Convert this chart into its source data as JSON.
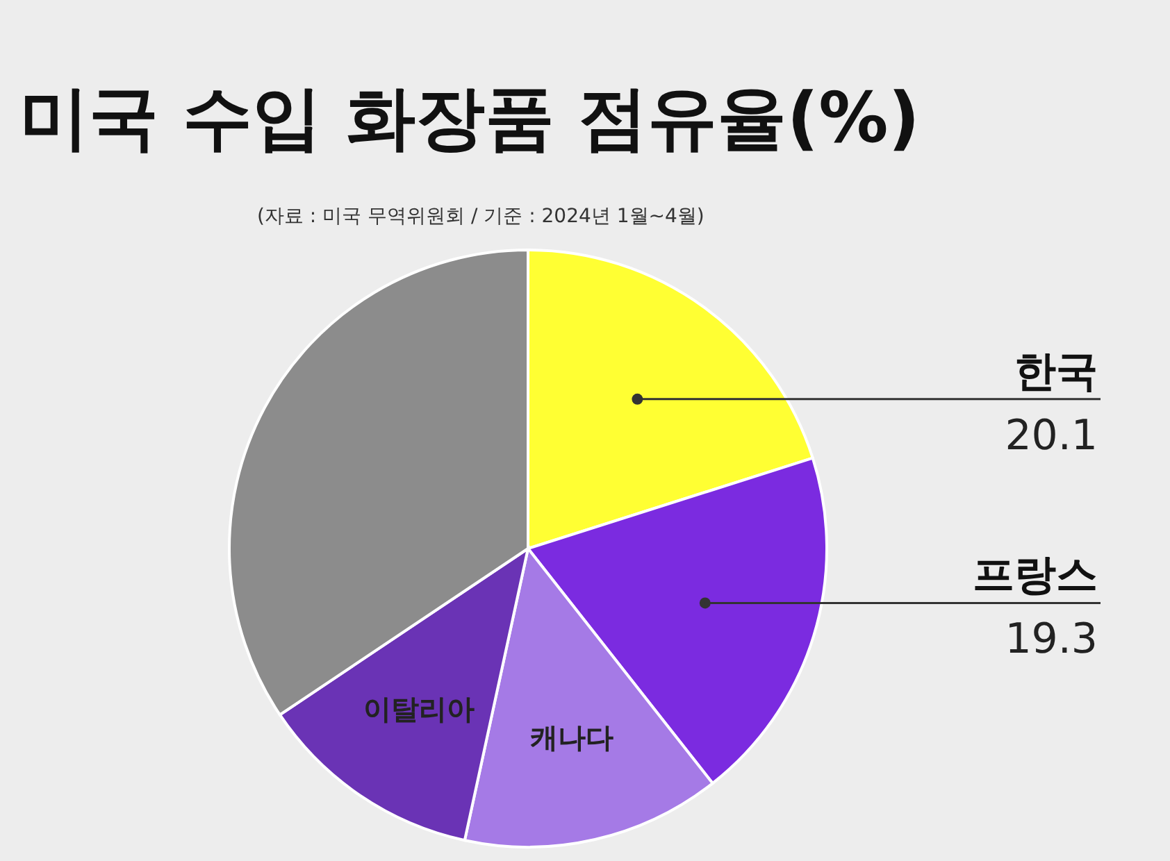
{
  "chart_data": {
    "type": "pie",
    "title": "미국 수입 화장품 점유율(%)",
    "subtitle": "(자료 : 미국 무역위원회 / 기준 : 2024년 1월~4월)",
    "categories": [
      "한국",
      "프랑스",
      "캐나다",
      "이탈리아",
      null
    ],
    "values": [
      20.1,
      19.3,
      14.0,
      12.2,
      34.4
    ],
    "value_labels": [
      "20.1",
      "19.3",
      null,
      null,
      null
    ],
    "colors": [
      "#ffff33",
      "#7b2be0",
      "#a57ae6",
      "#6a33b5",
      "#8c8c8c"
    ]
  }
}
